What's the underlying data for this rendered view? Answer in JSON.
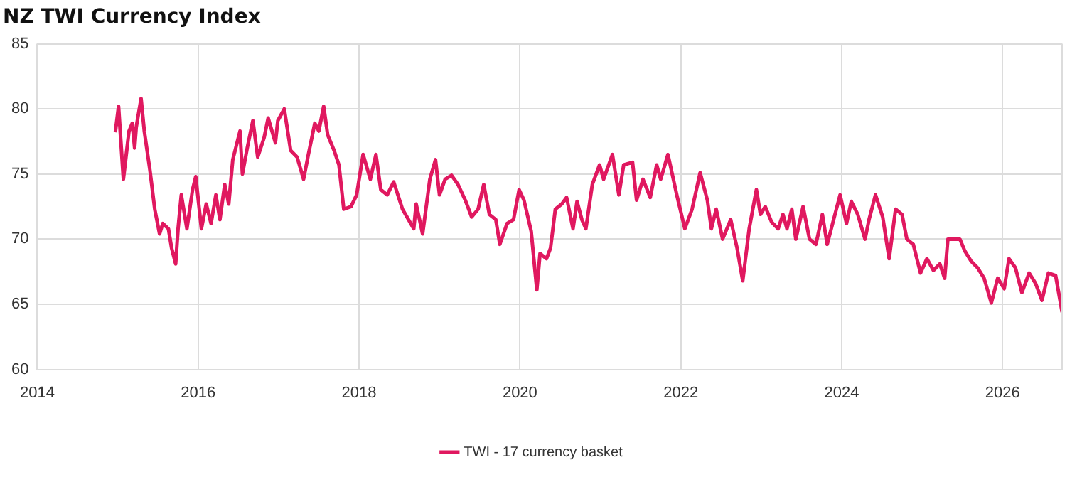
{
  "chart_data": {
    "type": "line",
    "title": "NZ TWI Currency Index",
    "x": [
      2014.97,
      2015.01,
      2015.07,
      2015.14,
      2015.18,
      2015.21,
      2015.23,
      2015.29,
      2015.33,
      2015.4,
      2015.46,
      2015.52,
      2015.56,
      2015.63,
      2015.67,
      2015.72,
      2015.75,
      2015.79,
      2015.86,
      2015.93,
      2015.97,
      2016.04,
      2016.1,
      2016.16,
      2016.22,
      2016.27,
      2016.33,
      2016.38,
      2016.43,
      2016.52,
      2016.55,
      2016.61,
      2016.68,
      2016.74,
      2016.82,
      2016.87,
      2016.96,
      2016.99,
      2017.07,
      2017.15,
      2017.23,
      2017.31,
      2017.37,
      2017.45,
      2017.5,
      2017.56,
      2017.61,
      2017.69,
      2017.75,
      2017.81,
      2017.9,
      2017.97,
      2018.05,
      2018.14,
      2018.21,
      2018.27,
      2018.35,
      2018.43,
      2018.54,
      2018.68,
      2018.71,
      2018.79,
      2018.88,
      2018.95,
      2019.0,
      2019.07,
      2019.15,
      2019.23,
      2019.32,
      2019.4,
      2019.48,
      2019.55,
      2019.62,
      2019.7,
      2019.75,
      2019.84,
      2019.92,
      2019.99,
      2020.05,
      2020.14,
      2020.21,
      2020.25,
      2020.33,
      2020.38,
      2020.44,
      2020.52,
      2020.58,
      2020.66,
      2020.71,
      2020.77,
      2020.82,
      2020.9,
      2020.99,
      2021.04,
      2021.15,
      2021.23,
      2021.29,
      2021.4,
      2021.45,
      2021.53,
      2021.62,
      2021.7,
      2021.75,
      2021.84,
      2021.95,
      2022.05,
      2022.14,
      2022.24,
      2022.33,
      2022.38,
      2022.44,
      2022.52,
      2022.62,
      2022.7,
      2022.77,
      2022.85,
      2022.94,
      2022.99,
      2023.05,
      2023.13,
      2023.21,
      2023.27,
      2023.32,
      2023.38,
      2023.43,
      2023.52,
      2023.6,
      2023.68,
      2023.76,
      2023.82,
      2023.9,
      2023.98,
      2024.06,
      2024.12,
      2024.2,
      2024.29,
      2024.34,
      2024.42,
      2024.51,
      2024.59,
      2024.67,
      2024.75,
      2024.81,
      2024.89,
      2024.98,
      2025.06,
      2025.14,
      2025.22,
      2025.28,
      2025.32,
      2025.42,
      2025.47,
      2025.53,
      2025.61,
      2025.69,
      2025.77,
      2025.86,
      2025.94,
      2026.02,
      2026.08,
      2026.16,
      2026.24,
      2026.33,
      2026.41,
      2026.49,
      2026.57,
      2026.66,
      2026.74
    ],
    "series": [
      {
        "name": "TWI - 17 currency basket",
        "color": "#e0185f",
        "values": [
          78.2,
          80.2,
          74.6,
          78.3,
          78.9,
          77.0,
          78.6,
          80.8,
          78.3,
          75.3,
          72.3,
          70.4,
          71.2,
          70.8,
          69.3,
          68.1,
          70.8,
          73.4,
          70.8,
          73.8,
          74.8,
          70.8,
          72.7,
          71.2,
          73.4,
          71.5,
          74.2,
          72.7,
          76.1,
          78.3,
          75.0,
          77.0,
          79.1,
          76.3,
          77.8,
          79.3,
          77.4,
          79.1,
          80.0,
          76.8,
          76.3,
          74.6,
          76.5,
          78.9,
          78.3,
          80.2,
          78.0,
          76.8,
          75.7,
          72.3,
          72.5,
          73.4,
          76.5,
          74.6,
          76.5,
          73.8,
          73.4,
          74.4,
          72.3,
          70.8,
          72.7,
          70.4,
          74.6,
          76.1,
          73.4,
          74.6,
          74.9,
          74.2,
          73.0,
          71.7,
          72.3,
          74.2,
          71.9,
          71.5,
          69.6,
          71.2,
          71.5,
          73.8,
          73.0,
          70.6,
          66.1,
          68.9,
          68.5,
          69.3,
          72.3,
          72.7,
          73.2,
          70.8,
          72.9,
          71.5,
          70.8,
          74.2,
          75.7,
          74.6,
          76.5,
          73.4,
          75.7,
          75.9,
          73.0,
          74.6,
          73.2,
          75.7,
          74.6,
          76.5,
          73.4,
          70.8,
          72.3,
          75.1,
          73.0,
          70.8,
          72.3,
          70.0,
          71.5,
          69.3,
          66.8,
          70.8,
          73.8,
          71.9,
          72.5,
          71.3,
          70.8,
          71.9,
          70.8,
          72.3,
          70.0,
          72.5,
          70.0,
          69.6,
          71.9,
          69.6,
          71.5,
          73.4,
          71.2,
          72.9,
          71.9,
          70.0,
          71.5,
          73.4,
          71.7,
          68.5,
          72.3,
          71.9,
          70.0,
          69.6,
          67.4,
          68.5,
          67.6,
          68.1,
          67.0,
          70.0,
          70.0,
          70.0,
          69.1,
          68.3,
          67.8,
          67.0,
          65.1,
          67.0,
          66.2,
          68.5,
          67.8,
          65.9,
          67.4,
          66.6,
          65.3,
          67.4,
          67.2,
          64.4
        ]
      }
    ],
    "xlim": [
      2014,
      2026.74
    ],
    "xticks": [
      2014,
      2016,
      2018,
      2020,
      2022,
      2024,
      2026
    ],
    "ylim": [
      60,
      85
    ],
    "yticks": [
      60,
      65,
      70,
      75,
      80,
      85
    ],
    "grid": true,
    "legend": "bottom",
    "marker": "none",
    "line_style": "solid"
  }
}
